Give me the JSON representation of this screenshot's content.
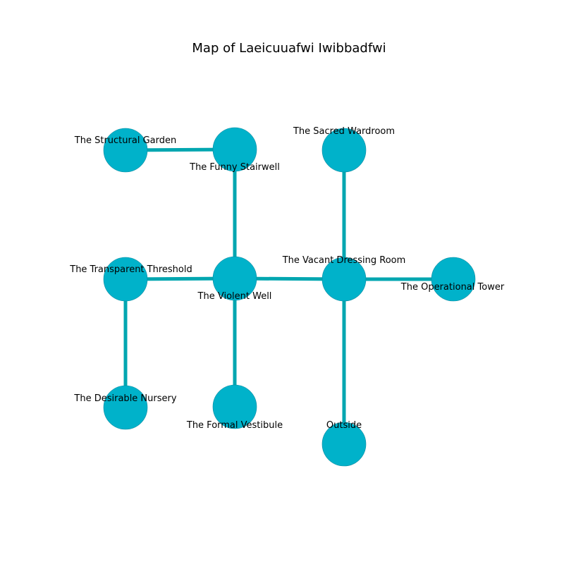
{
  "title": "Map of Laeicuuafwi Iwibbadfwi",
  "colors": {
    "node_fill": "#00b2ca",
    "node_stroke": "#0a8aa0",
    "edge": "#00a6b0",
    "text": "#000000",
    "background": "#ffffff"
  },
  "nodes": [
    {
      "id": "structural-garden",
      "label": "The Structural Garden"
    },
    {
      "id": "funny-stairwell",
      "label": "The Funny Stairwell"
    },
    {
      "id": "sacred-wardroom",
      "label": "The Sacred Wardroom"
    },
    {
      "id": "transparent-threshold",
      "label": "The Transparent Threshold"
    },
    {
      "id": "violent-well",
      "label": "The Violent Well"
    },
    {
      "id": "vacant-dressing-room",
      "label": "The Vacant Dressing Room"
    },
    {
      "id": "operational-tower",
      "label": "The Operational Tower"
    },
    {
      "id": "desirable-nursery",
      "label": "The Desirable Nursery"
    },
    {
      "id": "formal-vestibule",
      "label": "The Formal Vestibule"
    },
    {
      "id": "outside",
      "label": "Outside"
    }
  ],
  "edges": [
    {
      "from": "structural-garden",
      "to": "funny-stairwell"
    },
    {
      "from": "funny-stairwell",
      "to": "violent-well"
    },
    {
      "from": "transparent-threshold",
      "to": "violent-well"
    },
    {
      "from": "violent-well",
      "to": "vacant-dressing-room"
    },
    {
      "from": "vacant-dressing-room",
      "to": "operational-tower"
    },
    {
      "from": "sacred-wardroom",
      "to": "vacant-dressing-room"
    },
    {
      "from": "transparent-threshold",
      "to": "desirable-nursery"
    },
    {
      "from": "violent-well",
      "to": "formal-vestibule"
    },
    {
      "from": "vacant-dressing-room",
      "to": "outside"
    }
  ]
}
